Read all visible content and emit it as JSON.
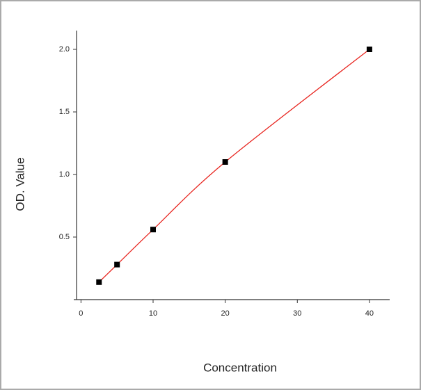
{
  "chart_data": {
    "type": "scatter",
    "x_label": "Concentration",
    "y_label": "OD. Value",
    "x": [
      2.5,
      5,
      10,
      20,
      40
    ],
    "series": [
      {
        "values": [
          0.14,
          0.28,
          0.56,
          1.1,
          2.0
        ],
        "color": "#000000",
        "line_color": "#e8251f"
      }
    ],
    "xlim": [
      -1,
      43
    ],
    "xticks": [
      0,
      10,
      20,
      30,
      40
    ],
    "ylim": [
      0,
      2.15
    ],
    "yticks": [
      {
        "value": 0.5,
        "label": "0.5"
      },
      {
        "value": 1.0,
        "label": "1.0"
      },
      {
        "value": 1.5,
        "label": "1.5"
      },
      {
        "value": 2.0,
        "label": "2.0"
      }
    ],
    "grid": false
  }
}
